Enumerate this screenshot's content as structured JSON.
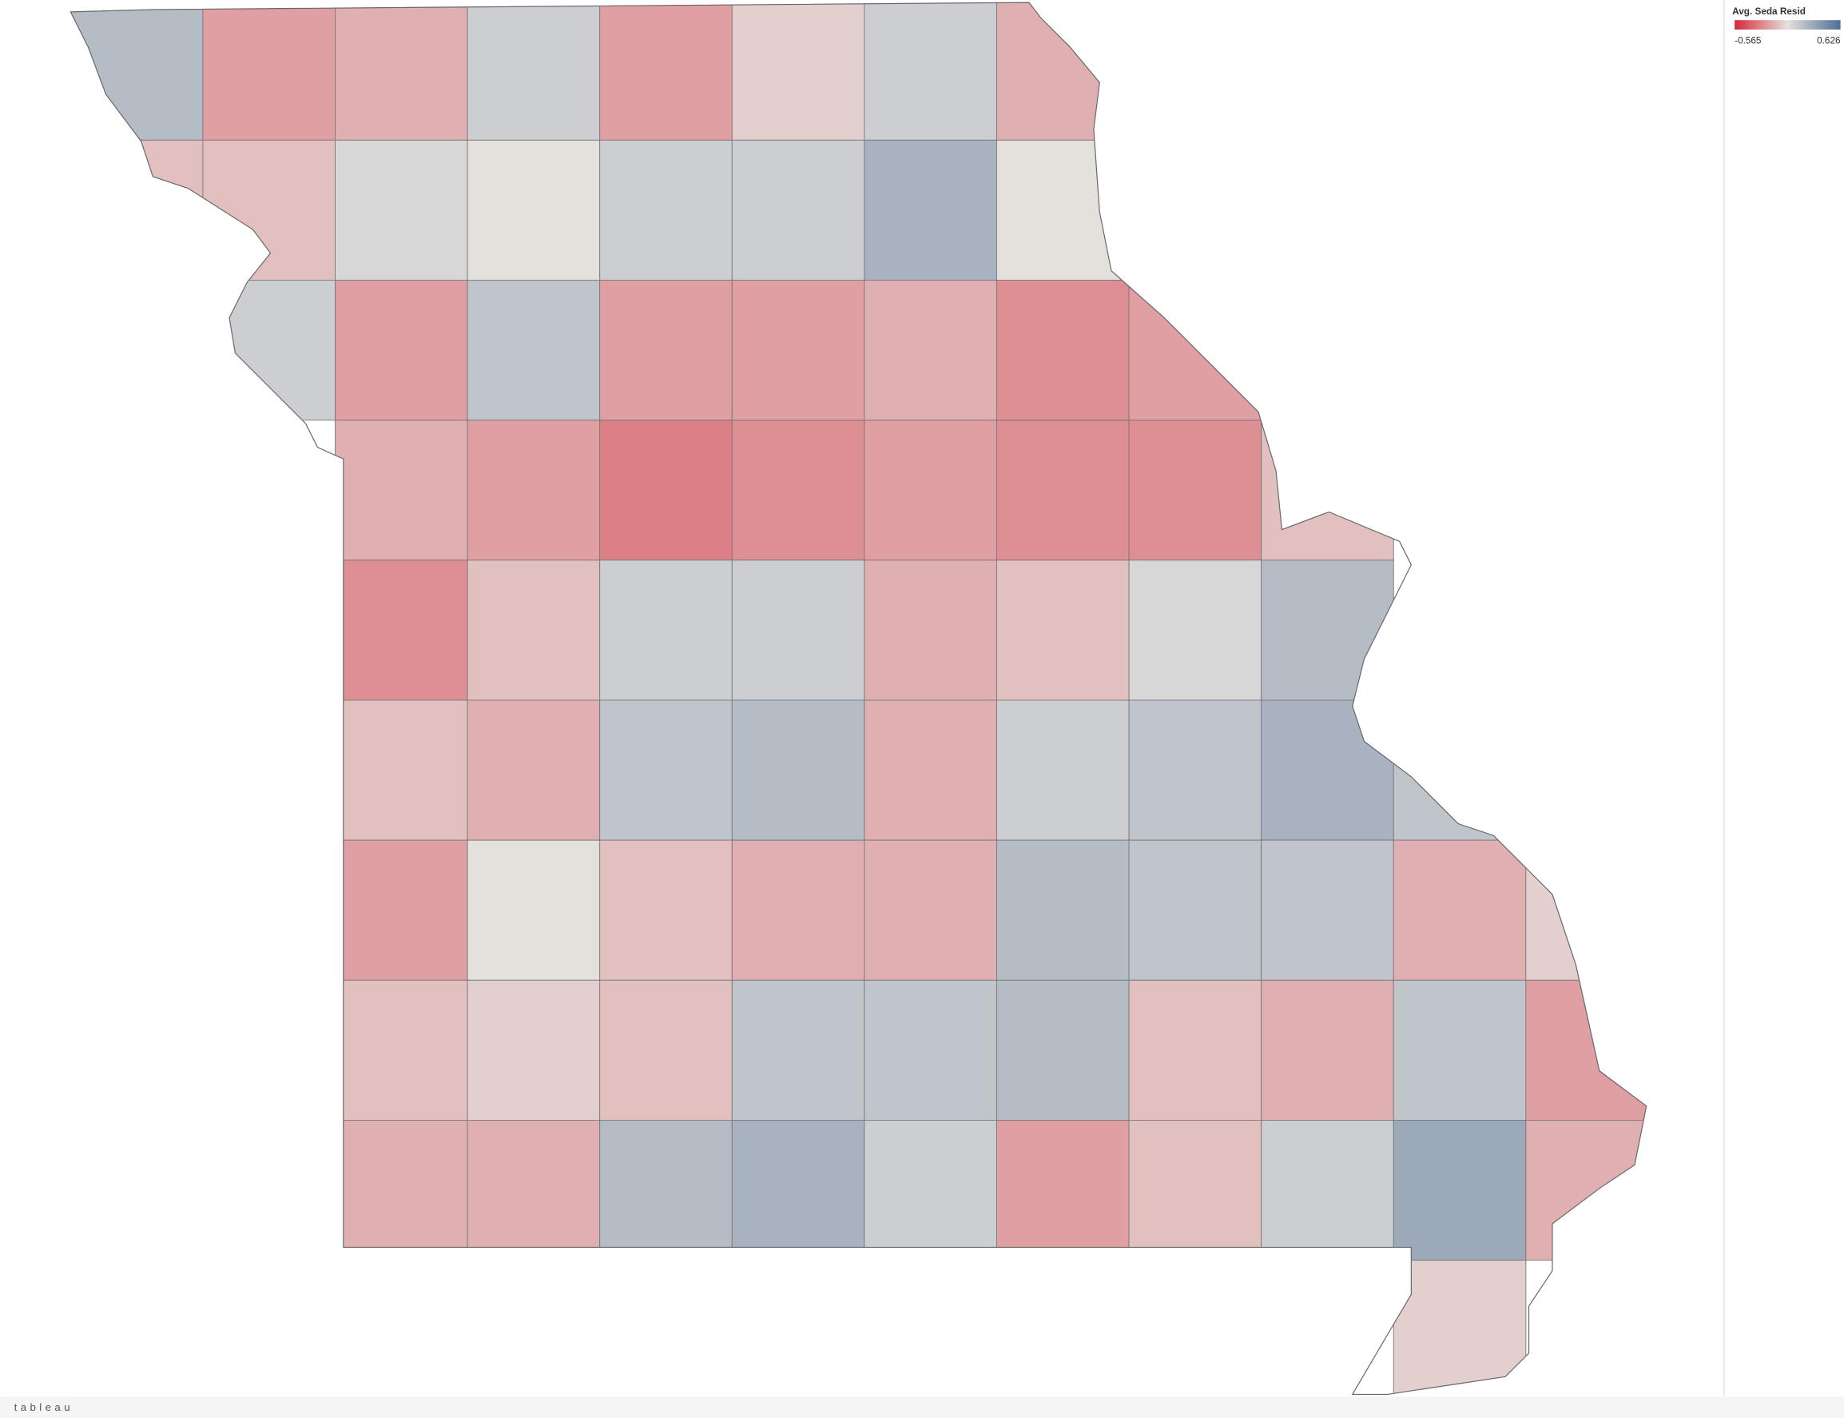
{
  "chart_data": {
    "type": "choropleth",
    "legend_title": "Avg. Seda Resid",
    "color_min": -0.565,
    "color_max": 0.626,
    "colors": [
      "#d6293a",
      "#e4e0dc",
      "#4e6e98"
    ],
    "values": [
      [
        0.2,
        -0.2,
        -0.15,
        0.1,
        -0.2,
        -0.05,
        0.1,
        -0.15,
        null,
        null,
        null,
        null
      ],
      [
        -0.1,
        -0.1,
        0.05,
        0.0,
        0.1,
        0.1,
        0.25,
        0.0,
        null,
        null,
        null,
        null
      ],
      [
        null,
        0.1,
        -0.2,
        0.15,
        -0.2,
        -0.2,
        -0.15,
        -0.25,
        -0.2,
        null,
        null,
        null
      ],
      [
        null,
        null,
        -0.15,
        -0.2,
        -0.3,
        -0.25,
        -0.2,
        -0.25,
        -0.25,
        -0.1,
        null,
        null
      ],
      [
        null,
        null,
        -0.25,
        -0.1,
        0.1,
        0.1,
        -0.15,
        -0.1,
        0.05,
        0.2,
        null,
        null
      ],
      [
        null,
        null,
        -0.1,
        -0.15,
        0.15,
        0.2,
        -0.15,
        0.1,
        0.15,
        0.25,
        0.15,
        null
      ],
      [
        null,
        null,
        -0.2,
        0.0,
        -0.1,
        -0.15,
        -0.15,
        0.2,
        0.15,
        0.15,
        -0.15,
        -0.05
      ],
      [
        null,
        null,
        -0.1,
        -0.05,
        -0.1,
        0.15,
        0.15,
        0.2,
        -0.1,
        -0.15,
        0.15,
        -0.2
      ],
      [
        null,
        null,
        -0.15,
        -0.15,
        0.2,
        0.25,
        0.1,
        -0.2,
        -0.1,
        0.1,
        0.3,
        -0.15
      ],
      [
        null,
        null,
        null,
        null,
        null,
        null,
        null,
        null,
        null,
        null,
        -0.05,
        null
      ]
    ]
  },
  "brand": "tableau"
}
